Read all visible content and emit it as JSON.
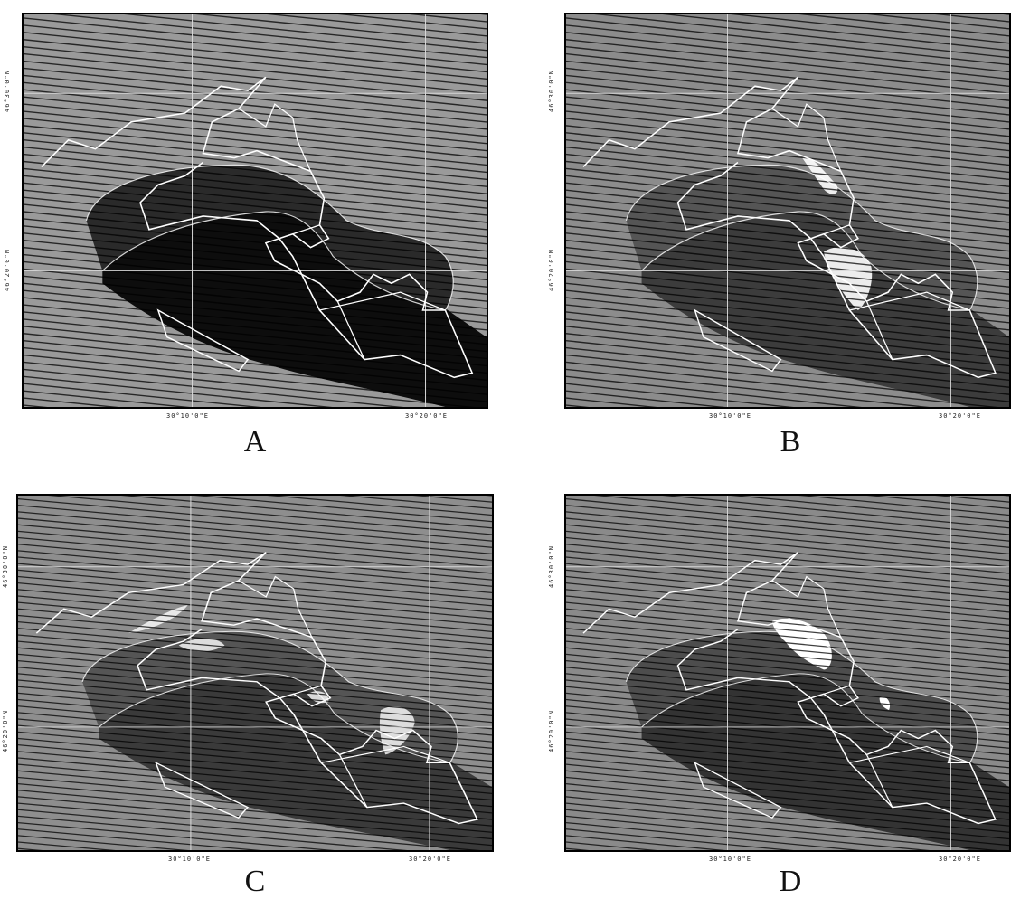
{
  "figure": {
    "panels": [
      {
        "label": "A",
        "tone": {
          "land": "#9a9a9a",
          "lake": "#0d0d0d",
          "halo": "#2a2a2a"
        },
        "ticks": {
          "x": [
            "30°10'0\"E",
            "30°20'0\"E"
          ],
          "y": [
            "46°30'0\"N",
            "46°20'0\"N"
          ]
        },
        "patch_level": 0.0
      },
      {
        "label": "B",
        "tone": {
          "land": "#8c8c8c",
          "lake": "#3c3c3c",
          "halo": "#555555"
        },
        "ticks": {
          "x": [
            "30°10'0\"E",
            "30°20'0\"E"
          ],
          "y": [
            "46°30'0\"N",
            "46°20'0\"N"
          ]
        },
        "patch_level": 0.6
      },
      {
        "label": "C",
        "tone": {
          "land": "#8e8e8e",
          "lake": "#3a3a3a",
          "halo": "#555555"
        },
        "ticks": {
          "x": [
            "30°10'0\"E",
            "30°20'0\"E"
          ],
          "y": [
            "46°30'0\"N",
            "46°20'0\"N"
          ]
        },
        "patch_level": 0.5
      },
      {
        "label": "D",
        "tone": {
          "land": "#8a8a8a",
          "lake": "#333333",
          "halo": "#4d4d4d"
        },
        "ticks": {
          "x": [
            "30°10'0\"E",
            "30°20'0\"E"
          ],
          "y": [
            "46°30'0\"N",
            "46°20'0\"N"
          ]
        },
        "patch_level": 0.7
      }
    ]
  }
}
